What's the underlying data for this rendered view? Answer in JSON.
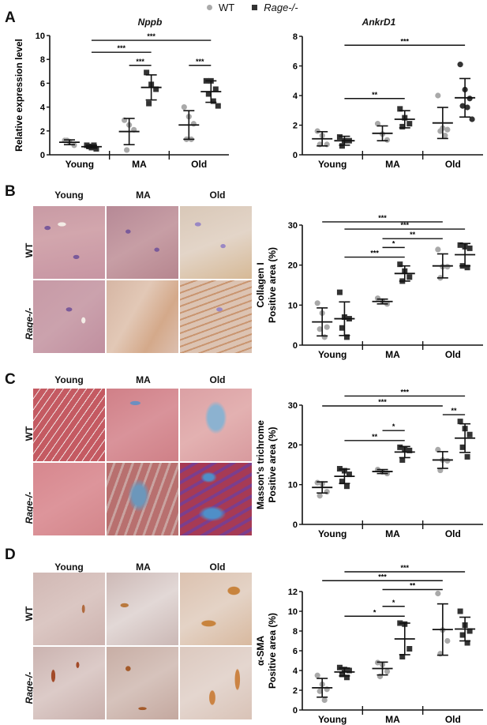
{
  "legend": {
    "wt_label": "WT",
    "rage_label": "Rage-/-",
    "wt_color": "#a9a9a9",
    "rage_color": "#333333"
  },
  "panels": {
    "A": {
      "letter": "A"
    },
    "B": {
      "letter": "B",
      "columns": [
        "Young",
        "MA",
        "Old"
      ],
      "rows": [
        "WT",
        "Rage-/-"
      ]
    },
    "C": {
      "letter": "C",
      "columns": [
        "Young",
        "MA",
        "Old"
      ],
      "rows": [
        "WT",
        "Rage-/-"
      ]
    },
    "D": {
      "letter": "D",
      "columns": [
        "Young",
        "MA",
        "Old"
      ],
      "rows": [
        "WT",
        "Rage-/-"
      ]
    }
  },
  "chart_data": [
    {
      "id": "nppb",
      "type": "scatter",
      "title": "Nppb",
      "ylabel": "Relative expression level",
      "xlabel": "",
      "categories": [
        "Young",
        "MA",
        "Old"
      ],
      "ylim": [
        0,
        10
      ],
      "yticks": [
        0,
        2,
        4,
        6,
        8,
        10
      ],
      "series": [
        {
          "name": "WT",
          "group": "Young",
          "points": [
            1.2,
            1.1,
            0.8,
            1.2
          ],
          "mean": 1.05,
          "sd": 0.2
        },
        {
          "name": "Rage-/-",
          "group": "Young",
          "points": [
            0.8,
            0.6,
            0.5,
            0.7,
            0.8
          ],
          "mean": 0.68,
          "sd": 0.12
        },
        {
          "name": "WT",
          "group": "MA",
          "points": [
            2.9,
            2.5,
            2.1,
            0.4
          ],
          "mean": 1.95,
          "sd": 1.1
        },
        {
          "name": "Rage-/-",
          "group": "MA",
          "points": [
            6.9,
            5.9,
            5.5,
            4.3
          ],
          "mean": 5.65,
          "sd": 1.05
        },
        {
          "name": "WT",
          "group": "Old",
          "points": [
            4.0,
            3.2,
            2.6,
            1.3,
            1.3
          ],
          "mean": 2.5,
          "sd": 1.2
        },
        {
          "name": "Rage-/-",
          "group": "Old",
          "points": [
            6.2,
            6.2,
            5.5,
            5.1,
            4.5,
            4.1
          ],
          "mean": 5.3,
          "sd": 0.9
        }
      ],
      "significance": [
        {
          "from": "Young Rage-/-",
          "to": "Old Rage-/-",
          "label": "***",
          "y": 9.6
        },
        {
          "from": "Young Rage-/-",
          "to": "MA Rage-/-",
          "label": "***",
          "y": 8.6
        },
        {
          "from": "MA WT",
          "to": "MA Rage-/-",
          "label": "***",
          "y": 7.5
        },
        {
          "from": "Old WT",
          "to": "Old Rage-/-",
          "label": "***",
          "y": 7.5
        }
      ]
    },
    {
      "id": "ankrd1",
      "type": "scatter",
      "title": "AnkrD1",
      "ylabel": "",
      "xlabel": "",
      "categories": [
        "Young",
        "MA",
        "Old"
      ],
      "ylim": [
        0,
        8
      ],
      "yticks": [
        0,
        2,
        4,
        6,
        8
      ],
      "series": [
        {
          "name": "WT",
          "group": "Young",
          "points": [
            1.6,
            1.3,
            0.7,
            0.7
          ],
          "mean": 1.08,
          "sd": 0.48
        },
        {
          "name": "Rage-/-",
          "group": "Young",
          "points": [
            1.2,
            0.95,
            0.95,
            0.6
          ],
          "mean": 0.95,
          "sd": 0.3
        },
        {
          "name": "WT",
          "group": "MA",
          "points": [
            2.1,
            1.4,
            1.0
          ],
          "mean": 1.45,
          "sd": 0.5
        },
        {
          "name": "Rage-/-",
          "group": "MA",
          "points": [
            3.1,
            2.5,
            2.1,
            1.9
          ],
          "mean": 2.4,
          "sd": 0.58
        },
        {
          "name": "WT",
          "group": "Old",
          "points": [
            4.0,
            1.8,
            1.7,
            1.6,
            1.3
          ],
          "mean": 2.15,
          "sd": 1.05
        },
        {
          "name": "Rage-/-",
          "group": "Old",
          "points": [
            6.1,
            4.4,
            3.8,
            3.3,
            3.2,
            2.4
          ],
          "mean": 3.85,
          "sd": 1.3
        }
      ],
      "significance": [
        {
          "from": "Young Rage-/-",
          "to": "Old Rage-/-",
          "label": "***",
          "y": 7.4
        },
        {
          "from": "Young Rage-/-",
          "to": "MA Rage-/-",
          "label": "**",
          "y": 3.8
        }
      ]
    },
    {
      "id": "collagen",
      "type": "scatter",
      "title": "",
      "ylabel": "Collagen I\nPositive area (%)",
      "xlabel": "",
      "categories": [
        "Young",
        "MA",
        "Old"
      ],
      "ylim": [
        0,
        30
      ],
      "yticks": [
        0,
        10,
        20,
        30
      ],
      "series": [
        {
          "name": "WT",
          "group": "Young",
          "points": [
            10.5,
            8,
            4.5,
            4,
            2
          ],
          "mean": 5.8,
          "sd": 3.5
        },
        {
          "name": "Rage-/-",
          "group": "Young",
          "points": [
            13.2,
            7,
            6.6,
            4.3,
            2
          ],
          "mean": 6.6,
          "sd": 4.2
        },
        {
          "name": "WT",
          "group": "MA",
          "points": [
            11.7,
            11,
            10.3
          ],
          "mean": 10.9,
          "sd": 0.6
        },
        {
          "name": "Rage-/-",
          "group": "MA",
          "points": [
            20.2,
            18.5,
            17,
            16
          ],
          "mean": 17.9,
          "sd": 1.9
        },
        {
          "name": "WT",
          "group": "Old",
          "points": [
            23.9,
            19.6,
            19.6,
            16.8
          ],
          "mean": 19.8,
          "sd": 3.0
        },
        {
          "name": "Rage-/-",
          "group": "Old",
          "points": [
            25,
            24.6,
            24.2,
            19.8,
            19.4
          ],
          "mean": 22.6,
          "sd": 2.8
        }
      ],
      "significance": [
        {
          "from": "Young WT",
          "to": "Old WT",
          "label": "***",
          "y": 30.8
        },
        {
          "from": "Young Rage-/-",
          "to": "Old Rage-/-",
          "label": "***",
          "y": 29
        },
        {
          "from": "MA WT",
          "to": "Old WT",
          "label": "**",
          "y": 26.6
        },
        {
          "from": "MA WT",
          "to": "MA Rage-/-",
          "label": "*",
          "y": 24.4
        },
        {
          "from": "Young Rage-/-",
          "to": "MA Rage-/-",
          "label": "***",
          "y": 22
        }
      ]
    },
    {
      "id": "masson",
      "type": "scatter",
      "title": "",
      "ylabel": "Masson's trichrome\nPositive area (%)",
      "xlabel": "",
      "categories": [
        "Young",
        "MA",
        "Old"
      ],
      "ylim": [
        0,
        30
      ],
      "yticks": [
        0,
        10,
        20,
        30
      ],
      "series": [
        {
          "name": "WT",
          "group": "Young",
          "points": [
            10.5,
            10.2,
            8.2,
            7.2
          ],
          "mean": 9.3,
          "sd": 1.4
        },
        {
          "name": "Rage-/-",
          "group": "Young",
          "points": [
            14,
            13.5,
            12.6,
            10.8,
            9.6
          ],
          "mean": 12.1,
          "sd": 1.8
        },
        {
          "name": "WT",
          "group": "MA",
          "points": [
            13.8,
            13.2,
            12.8
          ],
          "mean": 13.3,
          "sd": 0.5
        },
        {
          "name": "Rage-/-",
          "group": "MA",
          "points": [
            19.4,
            18.8,
            18.6,
            16.2
          ],
          "mean": 18.2,
          "sd": 1.4
        },
        {
          "name": "WT",
          "group": "Old",
          "points": [
            18.8,
            16.2,
            16,
            13.6
          ],
          "mean": 16.2,
          "sd": 2.1
        },
        {
          "name": "Rage-/-",
          "group": "Old",
          "points": [
            25.9,
            24.1,
            22.6,
            19.4,
            17
          ],
          "mean": 21.7,
          "sd": 3.6
        }
      ],
      "significance": [
        {
          "from": "Young Rage-/-",
          "to": "Old Rage-/-",
          "label": "***",
          "y": 32.3
        },
        {
          "from": "Young WT",
          "to": "Old WT",
          "label": "***",
          "y": 29.8
        },
        {
          "from": "Old WT",
          "to": "Old Rage-/-",
          "label": "**",
          "y": 27.6
        },
        {
          "from": "MA WT",
          "to": "MA Rage-/-",
          "label": "*",
          "y": 23.6
        },
        {
          "from": "Young Rage-/-",
          "to": "MA Rage-/-",
          "label": "**",
          "y": 21.1
        }
      ]
    },
    {
      "id": "asma",
      "type": "scatter",
      "title": "",
      "ylabel": "α-SMA\nPositive area (%)",
      "xlabel": "",
      "categories": [
        "Young",
        "MA",
        "Old"
      ],
      "ylim": [
        0,
        12
      ],
      "yticks": [
        0,
        2,
        4,
        6,
        8,
        10,
        12
      ],
      "series": [
        {
          "name": "WT",
          "group": "Young",
          "points": [
            3.5,
            2.6,
            2.1,
            1.9,
            1.0
          ],
          "mean": 2.25,
          "sd": 0.95
        },
        {
          "name": "Rage-/-",
          "group": "Young",
          "points": [
            4.3,
            4.1,
            4.0,
            3.6,
            3.3
          ],
          "mean": 3.85,
          "sd": 0.4
        },
        {
          "name": "WT",
          "group": "MA",
          "points": [
            4.8,
            4.6,
            3.9,
            3.4
          ],
          "mean": 4.2,
          "sd": 0.65
        },
        {
          "name": "Rage-/-",
          "group": "MA",
          "points": [
            8.8,
            8.7,
            6.2,
            5.4
          ],
          "mean": 7.2,
          "sd": 1.6
        },
        {
          "name": "WT",
          "group": "Old",
          "points": [
            11.8,
            8.1,
            7.0,
            5.7
          ],
          "mean": 8.15,
          "sd": 2.6
        },
        {
          "name": "Rage-/-",
          "group": "Old",
          "points": [
            10.0,
            8.6,
            8.0,
            7.6,
            6.8
          ],
          "mean": 8.2,
          "sd": 1.2
        }
      ],
      "significance": [
        {
          "from": "Young Rage-/-",
          "to": "Old Rage-/-",
          "label": "***",
          "y": 14
        },
        {
          "from": "Young WT",
          "to": "Old WT",
          "label": "***",
          "y": 13.1
        },
        {
          "from": "MA WT",
          "to": "Old WT",
          "label": "**",
          "y": 12.2
        },
        {
          "from": "MA WT",
          "to": "MA Rage-/-",
          "label": "*",
          "y": 10.5
        },
        {
          "from": "Young Rage-/-",
          "to": "MA Rage-/-",
          "label": "*",
          "y": 9.5
        }
      ]
    }
  ]
}
